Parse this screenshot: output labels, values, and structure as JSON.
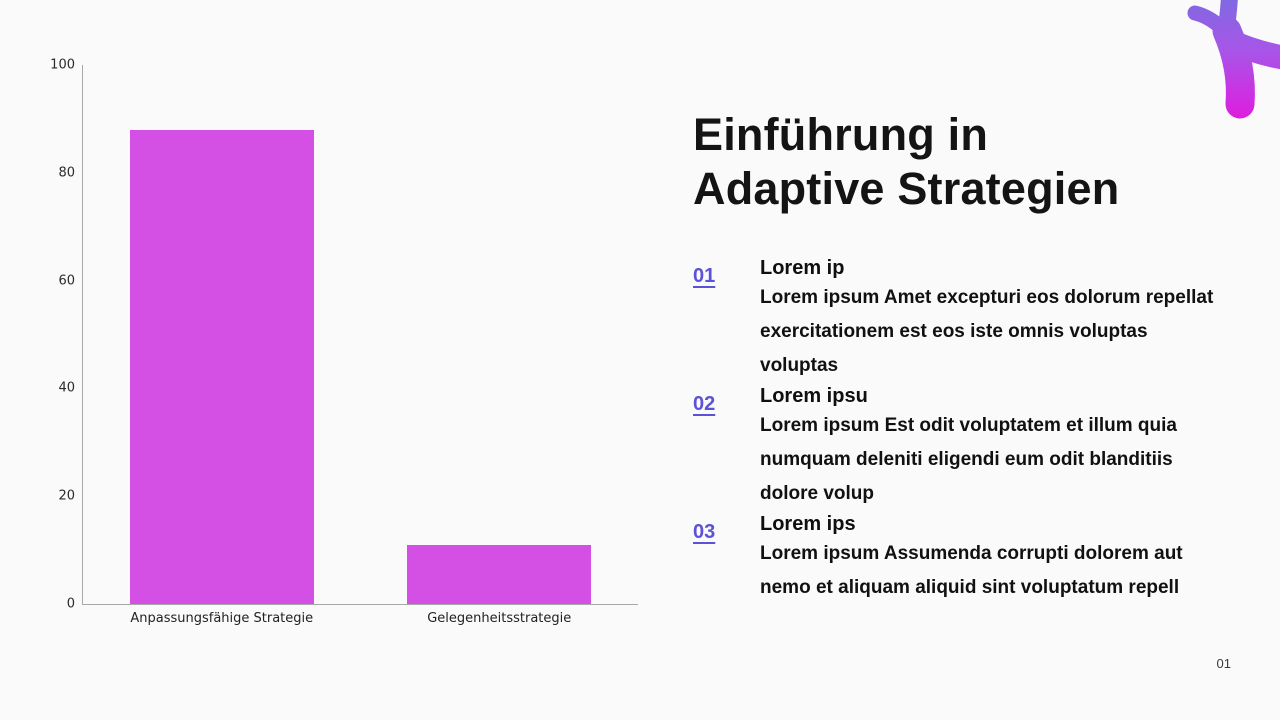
{
  "slide": {
    "title_line1": "Einführung in",
    "title_line2": "Adaptive Strategien",
    "page_number": "01",
    "accent_color": "#5b52d5",
    "background_color": "#fbfafb"
  },
  "list": {
    "items": [
      {
        "number": "01",
        "heading": "Lorem ip",
        "body": "Lorem ipsum Amet excepturi eos dolorum repellat exercitationem est eos iste omnis voluptas voluptas"
      },
      {
        "number": "02",
        "heading": "Lorem ipsu",
        "body": "Lorem ipsum Est odit voluptatem et illum quia numquam deleniti eligendi eum odit blanditiis dolore volup"
      },
      {
        "number": "03",
        "heading": "Lorem ips",
        "body": "Lorem ipsum Assumenda corrupti dolorem aut nemo et aliquam aliquid sint voluptatum repell"
      }
    ]
  },
  "chart_data": {
    "type": "bar",
    "categories": [
      "Anpassungsfähige Strategie",
      "Gelegenheitsstrategie"
    ],
    "values": [
      88,
      11
    ],
    "yticks": [
      0,
      20,
      40,
      60,
      80,
      100
    ],
    "ylim": [
      0,
      100
    ],
    "title": "",
    "xlabel": "",
    "ylabel": "",
    "bar_color": "#d44fe3",
    "axis_color": "#a8a8a8",
    "grid": false,
    "legend": "none"
  },
  "decor": {
    "blob_gradient_top": "#7a6ce0",
    "blob_gradient_mid": "#a855e8",
    "blob_gradient_bottom": "#e318dd"
  }
}
